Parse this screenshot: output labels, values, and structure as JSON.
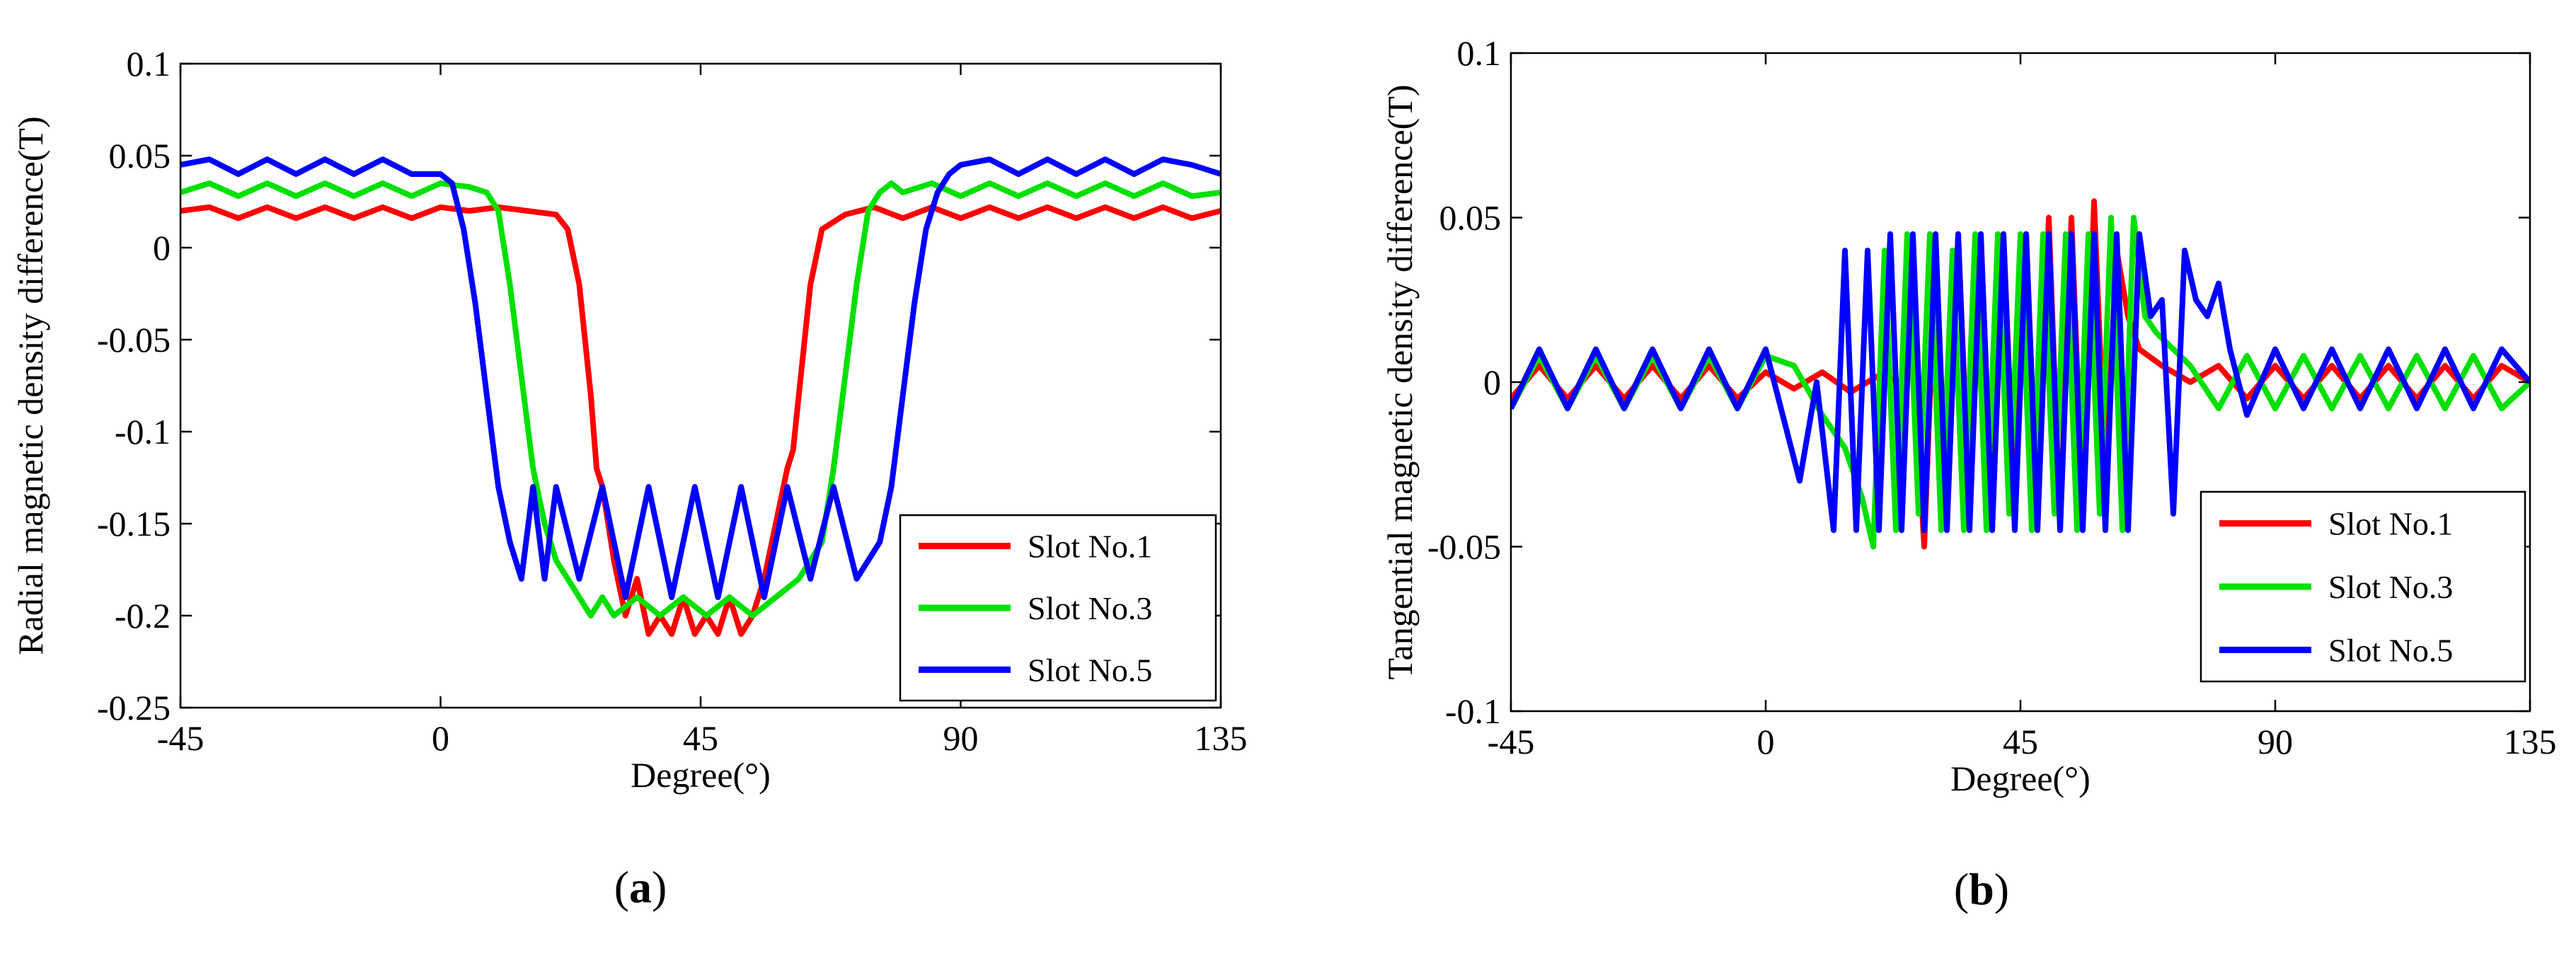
{
  "chart_data": [
    {
      "type": "line",
      "panel_label": "a",
      "title": "",
      "xlabel": "Degree(°)",
      "ylabel": "Radial magnetic density difference(T)",
      "xlim": [
        -45,
        135
      ],
      "ylim": [
        -0.25,
        0.1
      ],
      "xticks": [
        -45,
        0,
        45,
        90,
        135
      ],
      "xtick_labels": [
        "-45",
        "0",
        "45",
        "90",
        "135"
      ],
      "yticks": [
        0.1,
        0.05,
        0,
        -0.05,
        -0.1,
        -0.15,
        -0.2,
        -0.25
      ],
      "ytick_labels": [
        "0.1",
        "0.05",
        "0",
        "-0.05",
        "-0.1",
        "-0.15",
        "-0.2",
        "-0.25"
      ],
      "grid": false,
      "legend_position": "bottom-right",
      "series": [
        {
          "name": "Slot No.1",
          "color": "#ff0000",
          "x": [
            -45,
            -40,
            -35,
            -30,
            -25,
            -20,
            -15,
            -10,
            -5,
            0,
            5,
            10,
            15,
            20,
            22,
            24,
            26,
            27,
            28,
            30,
            32,
            34,
            36,
            38,
            40,
            42,
            44,
            46,
            48,
            50,
            52,
            54,
            56,
            58,
            60,
            61,
            62,
            64,
            66,
            70,
            75,
            80,
            85,
            90,
            95,
            100,
            105,
            110,
            115,
            120,
            125,
            130,
            135
          ],
          "y": [
            0.02,
            0.022,
            0.016,
            0.022,
            0.016,
            0.022,
            0.016,
            0.022,
            0.016,
            0.022,
            0.02,
            0.022,
            0.02,
            0.018,
            0.01,
            -0.02,
            -0.08,
            -0.12,
            -0.13,
            -0.17,
            -0.2,
            -0.18,
            -0.21,
            -0.2,
            -0.21,
            -0.19,
            -0.21,
            -0.2,
            -0.21,
            -0.19,
            -0.21,
            -0.2,
            -0.18,
            -0.15,
            -0.12,
            -0.11,
            -0.08,
            -0.02,
            0.01,
            0.018,
            0.022,
            0.016,
            0.022,
            0.016,
            0.022,
            0.016,
            0.022,
            0.016,
            0.022,
            0.016,
            0.022,
            0.016,
            0.02
          ]
        },
        {
          "name": "Slot No.3",
          "color": "#00e000",
          "x": [
            -45,
            -40,
            -35,
            -30,
            -25,
            -20,
            -15,
            -10,
            -5,
            0,
            5,
            8,
            10,
            12,
            14,
            16,
            18,
            20,
            22,
            24,
            26,
            28,
            30,
            34,
            38,
            42,
            46,
            50,
            54,
            58,
            62,
            66,
            68,
            70,
            72,
            74,
            76,
            78,
            80,
            85,
            90,
            95,
            100,
            105,
            110,
            115,
            120,
            125,
            130,
            135
          ],
          "y": [
            0.03,
            0.035,
            0.028,
            0.035,
            0.028,
            0.035,
            0.028,
            0.035,
            0.028,
            0.035,
            0.033,
            0.03,
            0.02,
            -0.02,
            -0.07,
            -0.12,
            -0.15,
            -0.17,
            -0.18,
            -0.19,
            -0.2,
            -0.19,
            -0.2,
            -0.19,
            -0.2,
            -0.19,
            -0.2,
            -0.19,
            -0.2,
            -0.19,
            -0.18,
            -0.16,
            -0.12,
            -0.07,
            -0.02,
            0.02,
            0.03,
            0.035,
            0.03,
            0.035,
            0.028,
            0.035,
            0.028,
            0.035,
            0.028,
            0.035,
            0.028,
            0.035,
            0.028,
            0.03
          ]
        },
        {
          "name": "Slot No.5",
          "color": "#0000ff",
          "x": [
            -45,
            -40,
            -35,
            -30,
            -25,
            -20,
            -15,
            -10,
            -5,
            0,
            2,
            4,
            6,
            8,
            10,
            12,
            14,
            16,
            18,
            20,
            24,
            28,
            32,
            36,
            40,
            44,
            48,
            52,
            56,
            60,
            64,
            68,
            72,
            76,
            78,
            80,
            82,
            84,
            86,
            88,
            90,
            95,
            100,
            105,
            110,
            115,
            120,
            125,
            130,
            135
          ],
          "y": [
            0.045,
            0.048,
            0.04,
            0.048,
            0.04,
            0.048,
            0.04,
            0.048,
            0.04,
            0.04,
            0.035,
            0.01,
            -0.03,
            -0.08,
            -0.13,
            -0.16,
            -0.18,
            -0.13,
            -0.18,
            -0.13,
            -0.18,
            -0.13,
            -0.19,
            -0.13,
            -0.19,
            -0.13,
            -0.19,
            -0.13,
            -0.19,
            -0.13,
            -0.18,
            -0.13,
            -0.18,
            -0.16,
            -0.13,
            -0.08,
            -0.03,
            0.01,
            0.03,
            0.04,
            0.045,
            0.048,
            0.04,
            0.048,
            0.04,
            0.048,
            0.04,
            0.048,
            0.045,
            0.04
          ]
        }
      ]
    },
    {
      "type": "line",
      "panel_label": "b",
      "title": "",
      "xlabel": "Degree(°)",
      "ylabel": "Tangential magnetic density difference(T)",
      "xlim": [
        -45,
        135
      ],
      "ylim": [
        -0.1,
        0.1
      ],
      "xticks": [
        -45,
        0,
        45,
        90,
        135
      ],
      "xtick_labels": [
        "-45",
        "0",
        "45",
        "90",
        "135"
      ],
      "yticks": [
        0.1,
        0.05,
        0,
        -0.05,
        -0.1
      ],
      "ytick_labels": [
        "0.1",
        "0.05",
        "0",
        "-0.05",
        "-0.1"
      ],
      "grid": false,
      "legend_position": "bottom-right",
      "series": [
        {
          "name": "Slot No.1",
          "color": "#ff0000",
          "x": [
            -45,
            -40,
            -35,
            -30,
            -25,
            -20,
            -15,
            -10,
            -5,
            0,
            5,
            10,
            15,
            20,
            24,
            26,
            28,
            30,
            32,
            34,
            36,
            38,
            40,
            42,
            44,
            46,
            48,
            50,
            52,
            54,
            56,
            58,
            60,
            62,
            64,
            66,
            70,
            75,
            80,
            85,
            90,
            95,
            100,
            105,
            110,
            115,
            120,
            125,
            130,
            135
          ],
          "y": [
            -0.005,
            0.005,
            -0.005,
            0.005,
            -0.005,
            0.005,
            -0.005,
            0.005,
            -0.005,
            0.003,
            -0.002,
            0.003,
            -0.003,
            0.002,
            0.0,
            0.01,
            -0.05,
            0.04,
            -0.045,
            0.045,
            -0.04,
            0.045,
            -0.045,
            0.045,
            -0.04,
            0.045,
            -0.045,
            0.05,
            -0.045,
            0.05,
            -0.04,
            0.055,
            -0.03,
            0.04,
            0.02,
            0.01,
            0.005,
            0.0,
            0.005,
            -0.005,
            0.005,
            -0.005,
            0.005,
            -0.005,
            0.005,
            -0.005,
            0.005,
            -0.005,
            0.005,
            0.0
          ]
        },
        {
          "name": "Slot No.3",
          "color": "#00e000",
          "x": [
            -45,
            -40,
            -35,
            -30,
            -25,
            -20,
            -15,
            -10,
            -5,
            0,
            5,
            10,
            14,
            17,
            19,
            21,
            23,
            25,
            27,
            29,
            31,
            33,
            35,
            37,
            39,
            41,
            43,
            45,
            47,
            49,
            51,
            53,
            55,
            57,
            59,
            61,
            63,
            65,
            67,
            69,
            72,
            75,
            80,
            85,
            90,
            95,
            100,
            105,
            110,
            115,
            120,
            125,
            130,
            135
          ],
          "y": [
            -0.008,
            0.008,
            -0.008,
            0.008,
            -0.008,
            0.008,
            -0.008,
            0.008,
            -0.008,
            0.008,
            0.005,
            -0.01,
            -0.02,
            -0.035,
            -0.05,
            0.04,
            -0.045,
            0.045,
            -0.04,
            0.045,
            -0.045,
            0.04,
            -0.045,
            0.045,
            -0.045,
            0.045,
            -0.04,
            0.045,
            -0.045,
            0.045,
            -0.04,
            0.045,
            -0.045,
            0.045,
            -0.04,
            0.05,
            -0.045,
            0.05,
            0.02,
            0.015,
            0.01,
            0.005,
            -0.008,
            0.008,
            -0.008,
            0.008,
            -0.008,
            0.008,
            -0.008,
            0.008,
            -0.008,
            0.008,
            -0.008,
            0.0
          ]
        },
        {
          "name": "Slot No.5",
          "color": "#0000ff",
          "x": [
            -45,
            -40,
            -35,
            -30,
            -25,
            -20,
            -15,
            -10,
            -5,
            0,
            3,
            6,
            9,
            12,
            14,
            16,
            18,
            20,
            22,
            24,
            26,
            28,
            30,
            32,
            34,
            36,
            38,
            40,
            42,
            44,
            46,
            48,
            50,
            52,
            54,
            56,
            58,
            60,
            62,
            64,
            66,
            68,
            70,
            72,
            74,
            76,
            78,
            80,
            82,
            85,
            90,
            95,
            100,
            105,
            110,
            115,
            120,
            125,
            130,
            135
          ],
          "y": [
            -0.008,
            0.01,
            -0.008,
            0.01,
            -0.008,
            0.01,
            -0.008,
            0.01,
            -0.008,
            0.01,
            -0.01,
            -0.03,
            0.0,
            -0.045,
            0.04,
            -0.045,
            0.04,
            -0.045,
            0.045,
            -0.045,
            0.045,
            -0.045,
            0.045,
            -0.045,
            0.045,
            -0.045,
            0.045,
            -0.045,
            0.045,
            -0.045,
            0.045,
            -0.045,
            0.045,
            -0.045,
            0.045,
            -0.045,
            0.045,
            -0.045,
            0.045,
            -0.045,
            0.045,
            0.02,
            0.025,
            -0.04,
            0.04,
            0.025,
            0.02,
            0.03,
            0.01,
            -0.01,
            0.01,
            -0.008,
            0.01,
            -0.008,
            0.01,
            -0.008,
            0.01,
            -0.008,
            0.01,
            0.0
          ]
        }
      ]
    }
  ]
}
